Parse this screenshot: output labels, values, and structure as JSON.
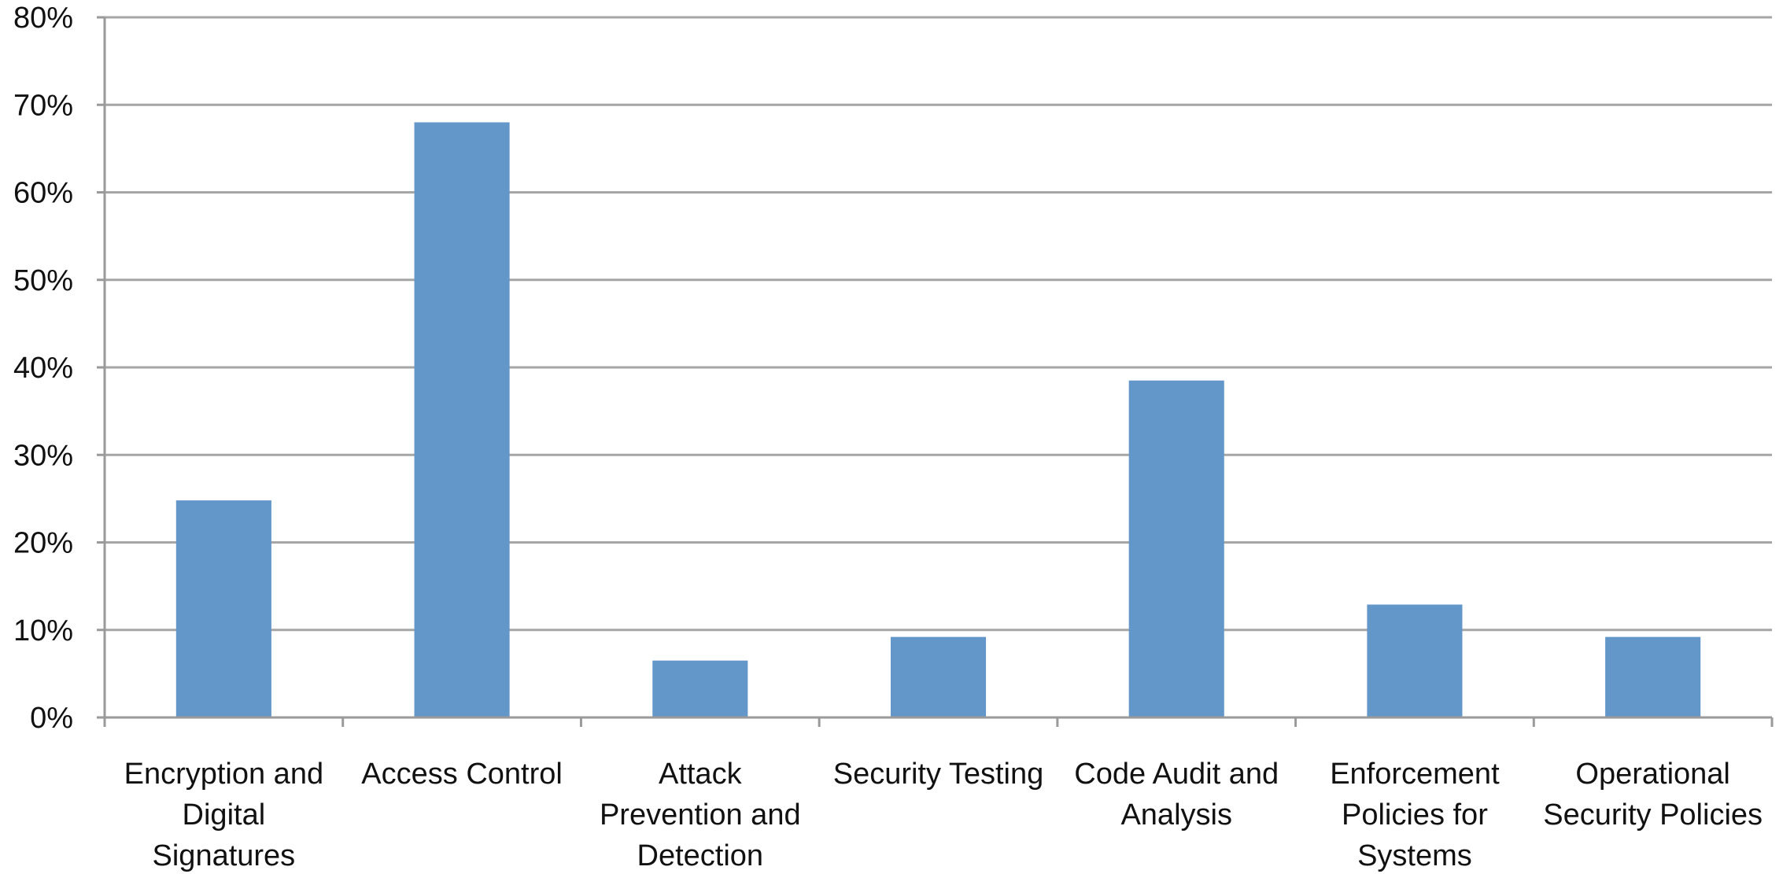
{
  "colors": {
    "bar": "#6497C9",
    "grid": "#A6A6A6",
    "axis": "#9A9A9A",
    "text": "#111111",
    "background": "#FFFFFF"
  },
  "chart_data": {
    "type": "bar",
    "title": "",
    "xlabel": "",
    "ylabel": "",
    "ylim": [
      0,
      0.8
    ],
    "y_tick_values": [
      0,
      0.1,
      0.2,
      0.3,
      0.4,
      0.5,
      0.6,
      0.7,
      0.8
    ],
    "y_tick_labels": [
      "0%",
      "10%",
      "20%",
      "30%",
      "40%",
      "50%",
      "60%",
      "70%",
      "80%"
    ],
    "grid": true,
    "legend": "none",
    "categories": [
      "Encryption and Digital Signatures",
      "Access Control",
      "Attack Prevention and Detection",
      "Security Testing",
      "Code Audit and Analysis",
      "Enforcement Policies for Systems",
      "Operational Security Policies"
    ],
    "category_label_lines": [
      [
        "Encryption and",
        "Digital",
        "Signatures"
      ],
      [
        "Access Control"
      ],
      [
        "Attack",
        "Prevention and",
        "Detection"
      ],
      [
        "Security Testing"
      ],
      [
        "Code Audit and",
        "Analysis"
      ],
      [
        "Enforcement",
        "Policies for",
        "Systems"
      ],
      [
        "Operational",
        "Security Policies"
      ]
    ],
    "values": [
      0.248,
      0.68,
      0.065,
      0.092,
      0.385,
      0.129,
      0.092
    ]
  }
}
